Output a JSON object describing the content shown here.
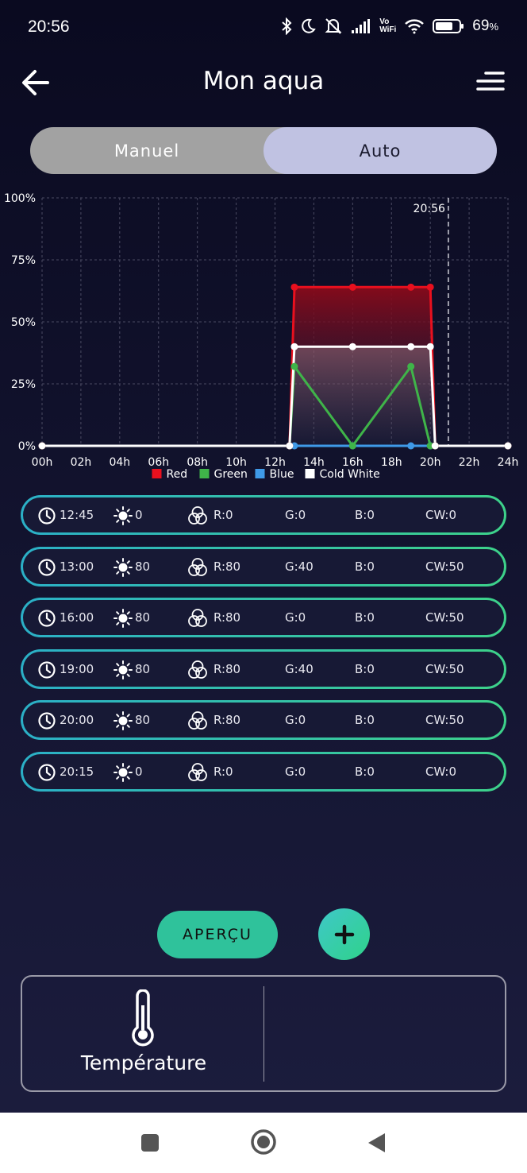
{
  "status_bar": {
    "time": "20:56",
    "battery": "69",
    "battery_suffix": "%",
    "vowifi_top": "Vo",
    "vowifi_bottom": "WiFi"
  },
  "header": {
    "title": "Mon aqua"
  },
  "mode_toggle": {
    "manual_label": "Manuel",
    "auto_label": "Auto",
    "selected": "Auto"
  },
  "chart_data": {
    "type": "line",
    "x_ticks": [
      "00h",
      "02h",
      "04h",
      "06h",
      "08h",
      "10h",
      "12h",
      "14h",
      "16h",
      "18h",
      "20h",
      "22h",
      "24h"
    ],
    "y_ticks": [
      "100%",
      "75%",
      "50%",
      "25%",
      "0%"
    ],
    "xlim": [
      0,
      24
    ],
    "ylim": [
      0,
      100
    ],
    "grid": true,
    "legend": "bottom",
    "now_marker": {
      "label": "20:56",
      "x": 20.93
    },
    "series": [
      {
        "name": "Red",
        "color": "#e8101e",
        "x": [
          0,
          12.75,
          13,
          16,
          19,
          20,
          20.25,
          24
        ],
        "y": [
          0,
          0,
          64,
          64,
          64,
          64,
          0,
          0
        ]
      },
      {
        "name": "Green",
        "color": "#3fb449",
        "x": [
          0,
          12.75,
          13,
          16,
          19,
          20,
          20.25,
          24
        ],
        "y": [
          0,
          0,
          32,
          0,
          32,
          0,
          0,
          0
        ]
      },
      {
        "name": "Blue",
        "color": "#3f9ae8",
        "x": [
          0,
          12.75,
          13,
          16,
          19,
          20,
          20.25,
          24
        ],
        "y": [
          0,
          0,
          0,
          0,
          0,
          0,
          0,
          0
        ]
      },
      {
        "name": "Cold White",
        "color": "#ffffff",
        "x": [
          0,
          12.75,
          13,
          16,
          19,
          20,
          20.25,
          24
        ],
        "y": [
          0,
          0,
          40,
          40,
          40,
          40,
          0,
          0
        ]
      }
    ]
  },
  "schedule": [
    {
      "time": "12:45",
      "brightness": "0",
      "r": "R:0",
      "g": "G:0",
      "b": "B:0",
      "cw": "CW:0"
    },
    {
      "time": "13:00",
      "brightness": "80",
      "r": "R:80",
      "g": "G:40",
      "b": "B:0",
      "cw": "CW:50"
    },
    {
      "time": "16:00",
      "brightness": "80",
      "r": "R:80",
      "g": "G:0",
      "b": "B:0",
      "cw": "CW:50"
    },
    {
      "time": "19:00",
      "brightness": "80",
      "r": "R:80",
      "g": "G:40",
      "b": "B:0",
      "cw": "CW:50"
    },
    {
      "time": "20:00",
      "brightness": "80",
      "r": "R:80",
      "g": "G:0",
      "b": "B:0",
      "cw": "CW:50"
    },
    {
      "time": "20:15",
      "brightness": "0",
      "r": "R:0",
      "g": "G:0",
      "b": "B:0",
      "cw": "CW:0"
    }
  ],
  "actions": {
    "apercu_label": "APERÇU"
  },
  "sensors": {
    "temperature_label": "Température"
  },
  "colors": {
    "accent_start": "#2bb0c7",
    "accent_end": "#3dd28a",
    "apercu": "#2fc29b"
  }
}
